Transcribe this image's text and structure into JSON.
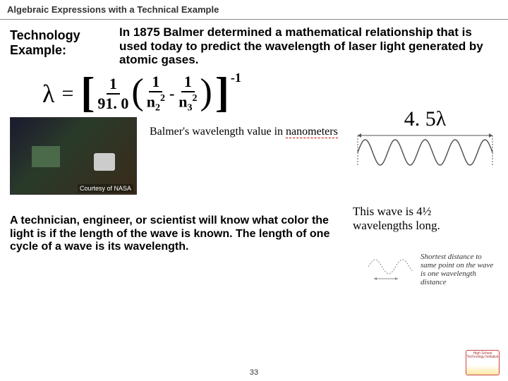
{
  "header": "Algebraic Expressions with a Technical Example",
  "tech_label_l1": "Technology",
  "tech_label_l2": "Example:",
  "intro": "In 1875 Balmer determined a mathematical relationship that is used today to predict the wavelength of laser light generated by atomic gases.",
  "formula": {
    "lambda": "λ",
    "equals": "=",
    "lbracket": "[",
    "rbracket": "]",
    "lparen": "(",
    "rparen": ")",
    "num1": "1",
    "den1": "91. 0",
    "num2": "1",
    "den2_base": "n",
    "den2_sub": "2",
    "den2_sup": "2",
    "minus": "-",
    "num3": "1",
    "den3_base": "n",
    "den3_sub": "3",
    "den3_sup": "2",
    "exp": "-1"
  },
  "wave_label": "4. 5λ",
  "wave": {
    "cycles": 4.5,
    "stroke": "#555555",
    "amplitude": 18,
    "width": 195,
    "height": 55
  },
  "courtesy": "Courtesy of NASA",
  "balmer_caption_pre": "Balmer's wavelength value in ",
  "balmer_caption_u": "nanometers",
  "wave_caption": "This wave is 4½ wavelengths long.",
  "bottom_text": "A technician, engineer, or scientist will know what color the light is if the length of the wave is known. The length of one cycle of a wave is its wavelength.",
  "small_wave_text": "Shortest distance to same point on the wave is one wavelength distance",
  "small_wave": {
    "stroke": "#888888",
    "width": 70,
    "height": 40
  },
  "page_num": "33",
  "logo_text": "High School Technology Initiative",
  "colors": {
    "header_border": "#888888",
    "underline": "#dd0000"
  }
}
